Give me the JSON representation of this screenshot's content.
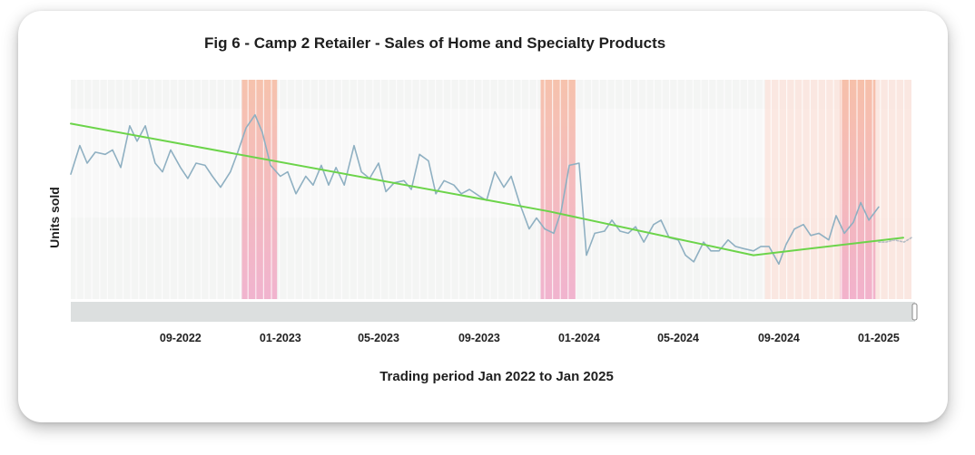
{
  "chart_data": {
    "type": "line",
    "title": "Fig 6 - Camp 2 Retailer - Sales of Home and Specialty Products",
    "xlabel": "Trading period Jan 2022 to Jan 2025",
    "ylabel": "Units sold",
    "x_ticks": [
      "09-2022",
      "01-2023",
      "05-2023",
      "09-2023",
      "01-2024",
      "05-2024",
      "09-2024",
      "01-2025"
    ],
    "x_range": [
      "2022-04-20",
      "2025-02-10"
    ],
    "y_range": [
      0,
      100
    ],
    "grid": true,
    "highlight_periods": [
      {
        "start": "2022-11-15",
        "end": "2022-12-28",
        "color": "#f0a8c0"
      },
      {
        "start": "2023-11-15",
        "end": "2023-12-28",
        "color": "#f0a8c0"
      },
      {
        "start": "2024-08-15",
        "end": "2025-02-10",
        "color": "#fbe4dc"
      },
      {
        "start": "2024-11-15",
        "end": "2024-12-28",
        "color": "#f0a8b0"
      }
    ],
    "series": [
      {
        "color": "#8fb0c2",
        "dates": [
          "2022-04-20",
          "2022-05-01",
          "2022-05-10",
          "2022-05-20",
          "2022-06-01",
          "2022-06-10",
          "2022-06-20",
          "2022-07-01",
          "2022-07-10",
          "2022-07-20",
          "2022-08-01",
          "2022-08-10",
          "2022-08-20",
          "2022-09-01",
          "2022-09-10",
          "2022-09-20",
          "2022-10-01",
          "2022-10-10",
          "2022-10-20",
          "2022-11-01",
          "2022-11-10",
          "2022-11-20",
          "2022-12-01",
          "2022-12-10",
          "2022-12-20",
          "2023-01-01",
          "2023-01-10",
          "2023-01-20",
          "2023-02-01",
          "2023-02-10",
          "2023-02-20",
          "2023-03-01",
          "2023-03-10",
          "2023-03-20",
          "2023-04-01",
          "2023-04-10",
          "2023-04-20",
          "2023-05-01",
          "2023-05-10",
          "2023-05-20",
          "2023-06-01",
          "2023-06-10",
          "2023-06-20",
          "2023-07-01",
          "2023-07-10",
          "2023-07-20",
          "2023-08-01",
          "2023-08-10",
          "2023-08-20",
          "2023-09-01",
          "2023-09-10",
          "2023-09-20",
          "2023-10-01",
          "2023-10-10",
          "2023-10-20",
          "2023-11-01",
          "2023-11-10",
          "2023-11-20",
          "2023-12-01",
          "2023-12-10",
          "2023-12-20",
          "2024-01-01",
          "2024-01-10",
          "2024-01-20",
          "2024-02-01",
          "2024-02-10",
          "2024-02-20",
          "2024-03-01",
          "2024-03-10",
          "2024-03-20",
          "2024-04-01",
          "2024-04-10",
          "2024-04-20",
          "2024-05-01",
          "2024-05-10",
          "2024-05-20",
          "2024-06-01",
          "2024-06-10",
          "2024-06-20",
          "2024-07-01",
          "2024-07-10",
          "2024-07-20",
          "2024-08-01",
          "2024-08-10",
          "2024-08-20",
          "2024-09-01",
          "2024-09-10",
          "2024-09-20",
          "2024-10-01",
          "2024-10-10",
          "2024-10-20",
          "2024-11-01",
          "2024-11-10",
          "2024-11-20",
          "2024-12-01",
          "2024-12-10",
          "2024-12-20",
          "2025-01-01"
        ],
        "values": [
          57,
          70,
          62,
          67,
          66,
          68,
          60,
          79,
          72,
          79,
          62,
          58,
          68,
          60,
          55,
          62,
          61,
          56,
          51,
          58,
          67,
          78,
          84,
          76,
          61,
          56,
          58,
          48,
          56,
          52,
          61,
          52,
          60,
          52,
          70,
          58,
          55,
          62,
          49,
          53,
          54,
          50,
          66,
          63,
          48,
          54,
          52,
          48,
          50,
          47,
          45,
          58,
          51,
          56,
          44,
          32,
          37,
          32,
          30,
          40,
          61,
          62,
          20,
          30,
          31,
          36,
          31,
          30,
          33,
          26,
          34,
          36,
          28,
          27,
          20,
          17,
          26,
          22,
          22,
          27,
          24,
          23,
          22,
          24,
          24,
          16,
          25,
          32,
          34,
          29,
          30,
          27,
          38,
          30,
          35,
          44,
          36,
          42
        ]
      },
      {
        "color": "#6cd44a",
        "dates": [
          "2022-04-20",
          "2023-11-25",
          "2024-08-01",
          "2025-01-31"
        ],
        "values": [
          80,
          40,
          20,
          28
        ]
      },
      {
        "color": "#b5bcc4",
        "dates": [
          "2025-01-01",
          "2025-01-10",
          "2025-01-20",
          "2025-02-01",
          "2025-02-10"
        ],
        "values": [
          26,
          26,
          27,
          26,
          28
        ]
      }
    ]
  }
}
